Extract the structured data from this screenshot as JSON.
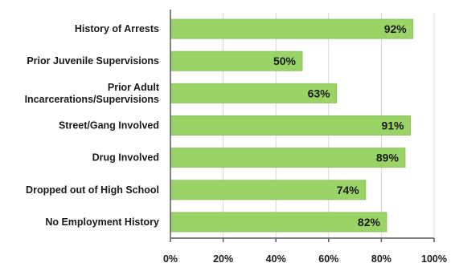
{
  "chart_data": {
    "type": "bar",
    "orientation": "horizontal",
    "categories": [
      [
        "History of Arrests"
      ],
      [
        "Prior Juvenile Supervisions"
      ],
      [
        "Prior Adult",
        "Incarcerations/Supervisions"
      ],
      [
        "Street/Gang Involved"
      ],
      [
        "Drug Involved"
      ],
      [
        "Dropped out of High School"
      ],
      [
        "No Employment History"
      ]
    ],
    "values": [
      92,
      50,
      63,
      91,
      89,
      74,
      82
    ],
    "data_labels": [
      "92%",
      "50%",
      "63%",
      "91%",
      "89%",
      "74%",
      "82%"
    ],
    "xlim": [
      0,
      100
    ],
    "ticks": [
      0,
      20,
      40,
      60,
      80,
      100
    ],
    "tick_labels": [
      "0%",
      "20%",
      "40%",
      "60%",
      "80%",
      "100%"
    ],
    "grid": true,
    "legend": "none",
    "title": "",
    "xlabel": "",
    "ylabel": "",
    "bar_color": "#9bd466",
    "bar_edge_color": "#8fbf62"
  }
}
